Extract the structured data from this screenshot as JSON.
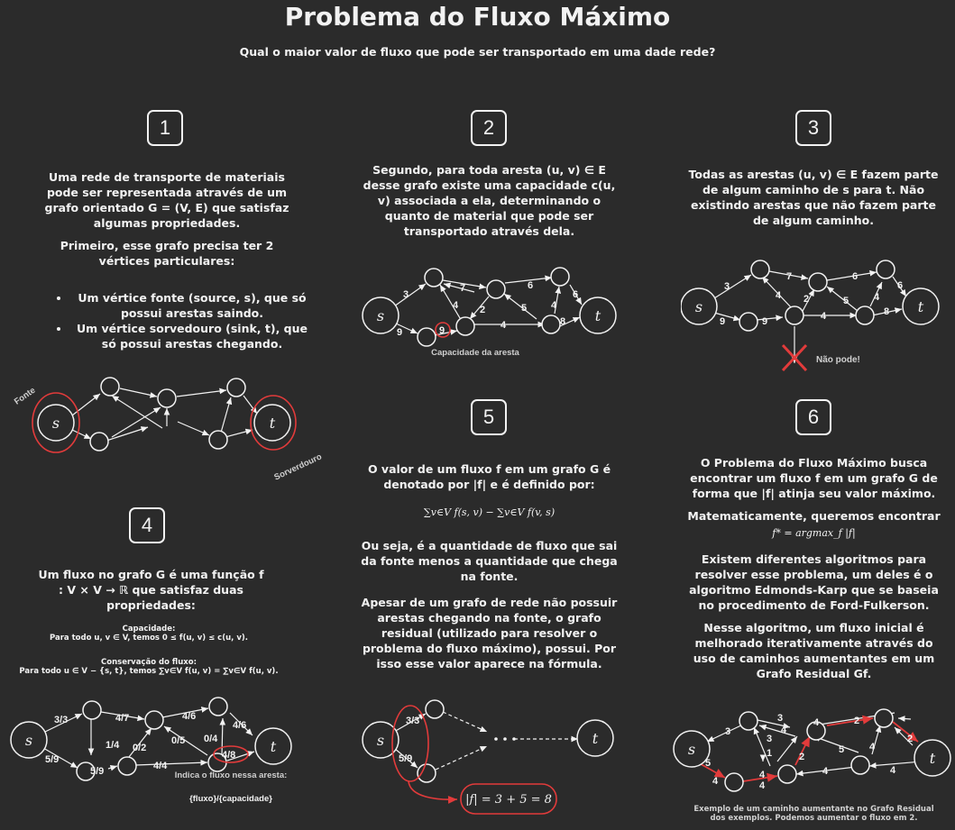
{
  "header": {
    "title": "Problema do Fluxo Máximo",
    "subtitle": "Qual o maior valor de fluxo que pode ser transportado em uma dade rede?"
  },
  "badges": [
    "1",
    "2",
    "3",
    "4",
    "5",
    "6"
  ],
  "section1": {
    "p1": "Uma rede de transporte de materiais pode ser representada através de um grafo orientado G = (V, E) que satisfaz algumas propriedades.",
    "p2": "Primeiro, esse grafo precisa ter 2 vértices particulares:",
    "item1": "Um vértice fonte (source, s), que só possui arestas saindo.",
    "item2": "Um vértice sorvedouro (sink, t), que só possui arestas chegando.",
    "label_fonte": "Fonte",
    "label_sorvedouro": "Sorverdouro",
    "node_s": "s",
    "node_t": "t"
  },
  "section2": {
    "p1": "Segundo, para toda aresta (u, v) ∈ E desse grafo existe uma capacidade c(u, v) associada a ela, determinando o quanto de material que pode ser transportado através dela.",
    "edge_labels": [
      "3",
      "7",
      "6",
      "9",
      "4",
      "2",
      "5",
      "4",
      "6",
      "9",
      "4",
      "8"
    ],
    "caption": "Capacidade da aresta"
  },
  "section3": {
    "p1": "Todas as arestas (u, v) ∈ E fazem parte de algum caminho de s para t. Não existindo arestas que não fazem parte de algum caminho.",
    "edge_labels": [
      "3",
      "7",
      "6",
      "9",
      "4",
      "2",
      "5",
      "4",
      "6",
      "9",
      "4",
      "8"
    ],
    "not_allowed": "Não pode!"
  },
  "section4": {
    "p1": "Um fluxo no grafo G é uma função f : V × V → ℝ que satisfaz duas propriedades:",
    "cap_title": "Capacidade:",
    "cap_rule": "Para todo u, v ∈ V, temos 0 ≤ f(u, v) ≤ c(u, v).",
    "cons_title": "Conservação do fluxo:",
    "cons_rule": "Para todo u ∈ V − {s, t}, temos ∑v∈V f(u, v) = ∑v∈V f(u, v).",
    "edge_labels": [
      "3/3",
      "4/7",
      "4/6",
      "4/6",
      "1/4",
      "0/2",
      "0/5",
      "0/4",
      "5/9",
      "5/9",
      "4/4",
      "4/8"
    ],
    "caption_line1": "Indica o fluxo nessa aresta:",
    "caption_line2": "{fluxo}/{capacidade}"
  },
  "section5": {
    "p1": "O valor de um fluxo f em um grafo G é denotado por |f| e é definido por:",
    "formula": "∑v∈V f(s, v) − ∑v∈V f(v, s)",
    "p2": "Ou seja, é a quantidade de fluxo que sai da fonte menos a quantidade que chega na fonte.",
    "p3": "Apesar de um grafo de rede não possuir arestas chegando na fonte, o grafo residual (utilizado para resolver o problema do fluxo máximo), possui. Por isso esse valor aparece na fórmula.",
    "edge_labels": [
      "3/3",
      "5/9"
    ],
    "result": "|f| = 3 + 5 = 8"
  },
  "section6": {
    "p1": "O Problema do Fluxo Máximo busca encontrar um fluxo f em um grafo G de forma que |f| atinja seu valor máximo.",
    "p2": "Matematicamente, queremos encontrar",
    "formula": "f* = argmax_f |f|",
    "p3": "Existem diferentes algoritmos para resolver esse problema, um deles é o algoritmo Edmonds-Karp que se baseia no procedimento de Ford-Fulkerson.",
    "p4": "Nesse algoritmo, um fluxo inicial é melhorado iterativamente através do uso de caminhos aumentantes em um Grafo Residual Gf.",
    "edge_labels": [
      "3",
      "3",
      "4",
      "2",
      "4",
      "1",
      "3",
      "5",
      "4",
      "2",
      "5",
      "4",
      "4",
      "4",
      "2",
      "4",
      "4"
    ],
    "caption": "Exemplo de um caminho aumentante no Grafo Residual dos exemplos. Podemos aumentar o fluxo em 2."
  },
  "colors": {
    "background": "#2b2b2b",
    "foreground": "#f2f2f2",
    "highlight": "#e23b3b"
  }
}
